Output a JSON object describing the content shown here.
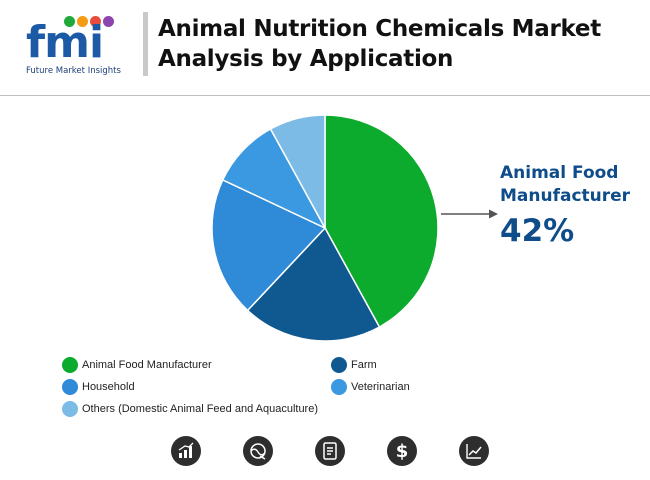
{
  "header": {
    "logo_text": "fmi",
    "logo_tagline": "Future Market Insights",
    "title": "Animal Nutrition Chemicals Market Analysis by Application"
  },
  "colors": {
    "animal_food_manufacturer": "#0cab2e",
    "farm": "#0f5990",
    "household": "#2f8ad8",
    "veterinarian": "#3a99e0",
    "others": "#7bbbe6",
    "callout": "#0f4c8a"
  },
  "chart_data": {
    "type": "pie",
    "title": "Animal Nutrition Chemicals Market Analysis by Application",
    "series": [
      {
        "name": "Animal Food Manufacturer",
        "value": 42,
        "color": "#0cab2e"
      },
      {
        "name": "Farm",
        "value": 20,
        "color": "#0f5990"
      },
      {
        "name": "Household",
        "value": 20,
        "color": "#2f8ad8"
      },
      {
        "name": "Veterinarian",
        "value": 10,
        "color": "#3a99e0"
      },
      {
        "name": "Others (Domestic Animal Feed and Aquaculture)",
        "value": 8,
        "color": "#7bbbe6"
      }
    ],
    "callout": {
      "label": "Animal Food Manufacturer",
      "value_text": "42%"
    },
    "legend_position": "bottom"
  },
  "callout": {
    "label": "Animal Food Manufacturer",
    "value_text": "42%"
  },
  "legend": [
    {
      "label": "Animal Food Manufacturer",
      "color": "#0cab2e"
    },
    {
      "label": "Farm",
      "color": "#0f5990"
    },
    {
      "label": "Household",
      "color": "#2f8ad8"
    },
    {
      "label": "Veterinarian",
      "color": "#3a99e0"
    },
    {
      "label": "Others (Domestic Animal Feed and Aquaculture)",
      "color": "#7bbbe6"
    }
  ],
  "footer_icons": [
    "bar-chart-icon",
    "globe-trend-icon",
    "report-icon",
    "dollar-icon",
    "line-chart-icon"
  ]
}
